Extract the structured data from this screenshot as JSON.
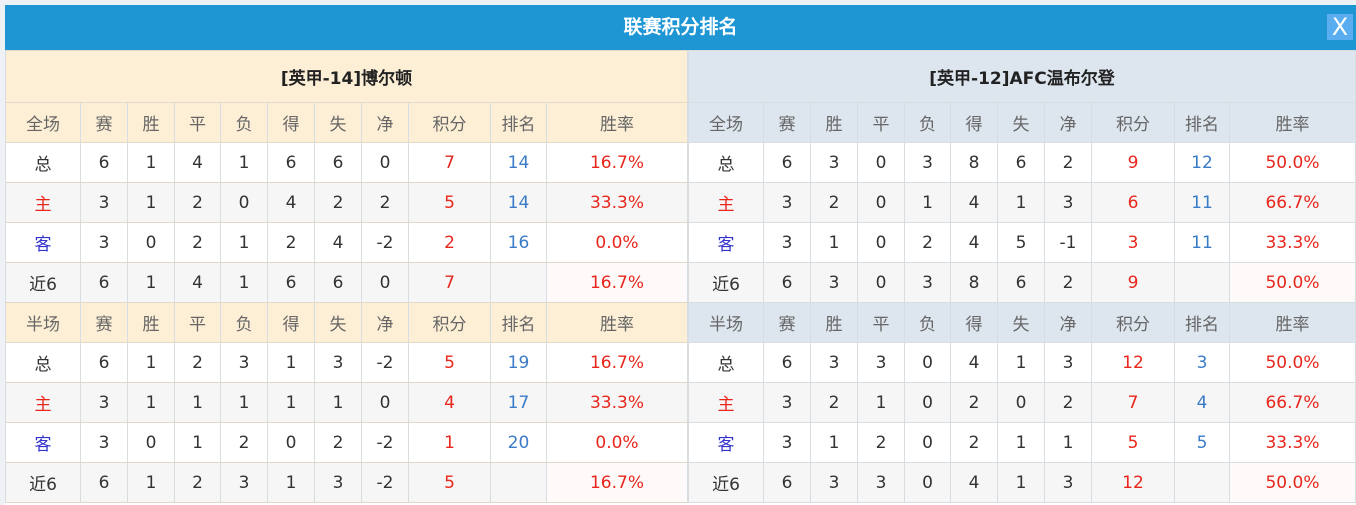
{
  "title": "联赛积分排名",
  "close_label": "X",
  "colors": {
    "header": "#1e96d4",
    "points": "#e8261c",
    "rank": "#3a7bc8",
    "home": "#e8261c",
    "away": "#3333cc"
  },
  "teams": [
    {
      "name": "[英甲-14]博尔顿",
      "sections": [
        {
          "header": [
            "全场",
            "赛",
            "胜",
            "平",
            "负",
            "得",
            "失",
            "净",
            "积分",
            "排名",
            "胜率"
          ],
          "rows": [
            [
              "总",
              "6",
              "1",
              "4",
              "1",
              "6",
              "6",
              "0",
              "7",
              "14",
              "16.7%"
            ],
            [
              "主",
              "3",
              "1",
              "2",
              "0",
              "4",
              "2",
              "2",
              "5",
              "14",
              "33.3%"
            ],
            [
              "客",
              "3",
              "0",
              "2",
              "1",
              "2",
              "4",
              "-2",
              "2",
              "16",
              "0.0%"
            ],
            [
              "近6",
              "6",
              "1",
              "4",
              "1",
              "6",
              "6",
              "0",
              "7",
              "",
              "16.7%"
            ]
          ]
        },
        {
          "header": [
            "半场",
            "赛",
            "胜",
            "平",
            "负",
            "得",
            "失",
            "净",
            "积分",
            "排名",
            "胜率"
          ],
          "rows": [
            [
              "总",
              "6",
              "1",
              "2",
              "3",
              "1",
              "3",
              "-2",
              "5",
              "19",
              "16.7%"
            ],
            [
              "主",
              "3",
              "1",
              "1",
              "1",
              "1",
              "1",
              "0",
              "4",
              "17",
              "33.3%"
            ],
            [
              "客",
              "3",
              "0",
              "1",
              "2",
              "0",
              "2",
              "-2",
              "1",
              "20",
              "0.0%"
            ],
            [
              "近6",
              "6",
              "1",
              "2",
              "3",
              "1",
              "3",
              "-2",
              "5",
              "",
              "16.7%"
            ]
          ]
        }
      ]
    },
    {
      "name": "[英甲-12]AFC温布尔登",
      "sections": [
        {
          "header": [
            "全场",
            "赛",
            "胜",
            "平",
            "负",
            "得",
            "失",
            "净",
            "积分",
            "排名",
            "胜率"
          ],
          "rows": [
            [
              "总",
              "6",
              "3",
              "0",
              "3",
              "8",
              "6",
              "2",
              "9",
              "12",
              "50.0%"
            ],
            [
              "主",
              "3",
              "2",
              "0",
              "1",
              "4",
              "1",
              "3",
              "6",
              "11",
              "66.7%"
            ],
            [
              "客",
              "3",
              "1",
              "0",
              "2",
              "4",
              "5",
              "-1",
              "3",
              "11",
              "33.3%"
            ],
            [
              "近6",
              "6",
              "3",
              "0",
              "3",
              "8",
              "6",
              "2",
              "9",
              "",
              "50.0%"
            ]
          ]
        },
        {
          "header": [
            "半场",
            "赛",
            "胜",
            "平",
            "负",
            "得",
            "失",
            "净",
            "积分",
            "排名",
            "胜率"
          ],
          "rows": [
            [
              "总",
              "6",
              "3",
              "3",
              "0",
              "4",
              "1",
              "3",
              "12",
              "3",
              "50.0%"
            ],
            [
              "主",
              "3",
              "2",
              "1",
              "0",
              "2",
              "0",
              "2",
              "7",
              "4",
              "66.7%"
            ],
            [
              "客",
              "3",
              "1",
              "2",
              "0",
              "2",
              "1",
              "1",
              "5",
              "5",
              "33.3%"
            ],
            [
              "近6",
              "6",
              "3",
              "3",
              "0",
              "4",
              "1",
              "3",
              "12",
              "",
              "50.0%"
            ]
          ]
        }
      ]
    }
  ]
}
